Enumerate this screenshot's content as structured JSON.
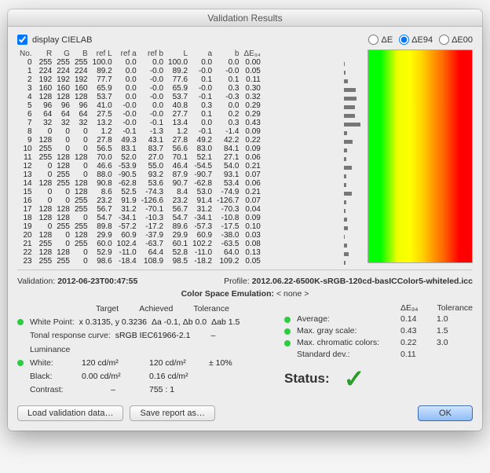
{
  "window": {
    "title": "Validation Results"
  },
  "top": {
    "checkbox_label": "display CIELAB",
    "radio_de": "ΔE",
    "radio_de94": "ΔE94",
    "radio_de00": "ΔE00",
    "selected": "de94"
  },
  "table": {
    "headers": [
      "No.",
      "R",
      "G",
      "B",
      "ref L",
      "ref a",
      "ref b",
      "L",
      "a",
      "b",
      "ΔE₉₄"
    ],
    "rows": [
      [
        0,
        255,
        255,
        255,
        "100.0",
        "0.0",
        "0.0",
        "100.0",
        "0.0",
        "0.0",
        "0.00"
      ],
      [
        1,
        224,
        224,
        224,
        "89.2",
        "0.0",
        "-0.0",
        "89.2",
        "-0.0",
        "-0.0",
        "0.05"
      ],
      [
        2,
        192,
        192,
        192,
        "77.7",
        "0.0",
        "-0.0",
        "77.6",
        "0.1",
        "0.1",
        "0.11"
      ],
      [
        3,
        160,
        160,
        160,
        "65.9",
        "0.0",
        "-0.0",
        "65.9",
        "-0.0",
        "0.3",
        "0.30"
      ],
      [
        4,
        128,
        128,
        128,
        "53.7",
        "0.0",
        "-0.0",
        "53.7",
        "-0.1",
        "-0.3",
        "0.32"
      ],
      [
        5,
        96,
        96,
        96,
        "41.0",
        "-0.0",
        "0.0",
        "40.8",
        "0.3",
        "0.0",
        "0.29"
      ],
      [
        6,
        64,
        64,
        64,
        "27.5",
        "-0.0",
        "-0.0",
        "27.7",
        "0.1",
        "0.2",
        "0.29"
      ],
      [
        7,
        32,
        32,
        32,
        "13.2",
        "-0.0",
        "-0.1",
        "13.4",
        "0.0",
        "0.3",
        "0.43"
      ],
      [
        8,
        0,
        0,
        0,
        "1.2",
        "-0.1",
        "-1.3",
        "1.2",
        "-0.1",
        "-1.4",
        "0.09"
      ],
      [
        9,
        128,
        0,
        0,
        "27.8",
        "49.3",
        "43.1",
        "27.8",
        "49.2",
        "42.2",
        "0.22"
      ],
      [
        10,
        255,
        0,
        0,
        "56.5",
        "83.1",
        "83.7",
        "56.6",
        "83.0",
        "84.1",
        "0.09"
      ],
      [
        11,
        255,
        128,
        128,
        "70.0",
        "52.0",
        "27.0",
        "70.1",
        "52.1",
        "27.1",
        "0.06"
      ],
      [
        12,
        0,
        128,
        0,
        "46.6",
        "-53.9",
        "55.0",
        "46.4",
        "-54.5",
        "54.0",
        "0.21"
      ],
      [
        13,
        0,
        255,
        0,
        "88.0",
        "-90.5",
        "93.2",
        "87.9",
        "-90.7",
        "93.1",
        "0.07"
      ],
      [
        14,
        128,
        255,
        128,
        "90.8",
        "-62.8",
        "53.6",
        "90.7",
        "-62.8",
        "53.4",
        "0.06"
      ],
      [
        15,
        0,
        0,
        128,
        "8.6",
        "52.5",
        "-74.3",
        "8.4",
        "53.0",
        "-74.9",
        "0.21"
      ],
      [
        16,
        0,
        0,
        255,
        "23.2",
        "91.9",
        "-126.6",
        "23.2",
        "91.4",
        "-126.7",
        "0.07"
      ],
      [
        17,
        128,
        128,
        255,
        "56.7",
        "31.2",
        "-70.1",
        "56.7",
        "31.2",
        "-70.3",
        "0.04"
      ],
      [
        18,
        128,
        128,
        0,
        "54.7",
        "-34.1",
        "-10.3",
        "54.7",
        "-34.1",
        "-10.8",
        "0.09"
      ],
      [
        19,
        0,
        255,
        255,
        "89.8",
        "-57.2",
        "-17.2",
        "89.6",
        "-57.3",
        "-17.5",
        "0.10"
      ],
      [
        20,
        128,
        0,
        128,
        "29.9",
        "60.9",
        "-37.9",
        "29.9",
        "60.9",
        "-38.0",
        "0.03"
      ],
      [
        21,
        255,
        0,
        255,
        "60.0",
        "102.4",
        "-63.7",
        "60.1",
        "102.2",
        "-63.5",
        "0.08"
      ],
      [
        22,
        128,
        128,
        0,
        "52.9",
        "-11.0",
        "64.4",
        "52.8",
        "-11.0",
        "64.0",
        "0.13"
      ],
      [
        23,
        255,
        255,
        0,
        "98.6",
        "-18.4",
        "108.9",
        "98.5",
        "-18.2",
        "109.2",
        "0.05"
      ]
    ],
    "bar_color": "#777777",
    "bar_scale_max": 0.45
  },
  "gradient": {
    "colors": [
      "#00ff00",
      "#ffff00",
      "#ff8000",
      "#ff0000"
    ]
  },
  "validation": {
    "label_validation": "Validation:",
    "timestamp": "2012-06-23T00:47:55",
    "label_profile": "Profile:",
    "profile": "2012.06.22-6500K-sRGB-120cd-basICColor5-whiteled.icc",
    "cse_label": "Color Space Emulation:",
    "cse_value": "< none >"
  },
  "left": {
    "hdr_target": "Target",
    "hdr_achieved": "Achieved",
    "hdr_tolerance": "Tolerance",
    "white_point_lbl": "White Point:",
    "white_point_target": "x 0.3135, y 0.3236",
    "white_point_ach": "Δa -0.1, Δb 0.0",
    "white_point_tol": "Δab 1.5",
    "tonal_lbl": "Tonal response curve:",
    "tonal_val": "sRGB IEC61966-2.1",
    "tonal_ach": "–",
    "lum_lbl": "Luminance",
    "white_lbl": "White:",
    "white_target": "120 cd/m²",
    "white_ach": "120 cd/m²",
    "white_tol": "± 10%",
    "black_lbl": "Black:",
    "black_target": "0.00 cd/m²",
    "black_ach": "0.16 cd/m²",
    "contrast_lbl": "Contrast:",
    "contrast_target": "–",
    "contrast_ach": "755 : 1"
  },
  "right": {
    "hdr_de": "ΔE₉₄",
    "hdr_tol": "Tolerance",
    "avg_lbl": "Average:",
    "avg_v": "0.14",
    "avg_tol": "1.0",
    "gray_lbl": "Max. gray scale:",
    "gray_v": "0.43",
    "gray_tol": "1.5",
    "chroma_lbl": "Max. chromatic colors:",
    "chroma_v": "0.22",
    "chroma_tol": "3.0",
    "std_lbl": "Standard dev.:",
    "std_v": "0.11",
    "status_lbl": "Status:",
    "status_check": "✓"
  },
  "buttons": {
    "load": "Load validation data…",
    "save": "Save report as…",
    "ok": "OK"
  }
}
